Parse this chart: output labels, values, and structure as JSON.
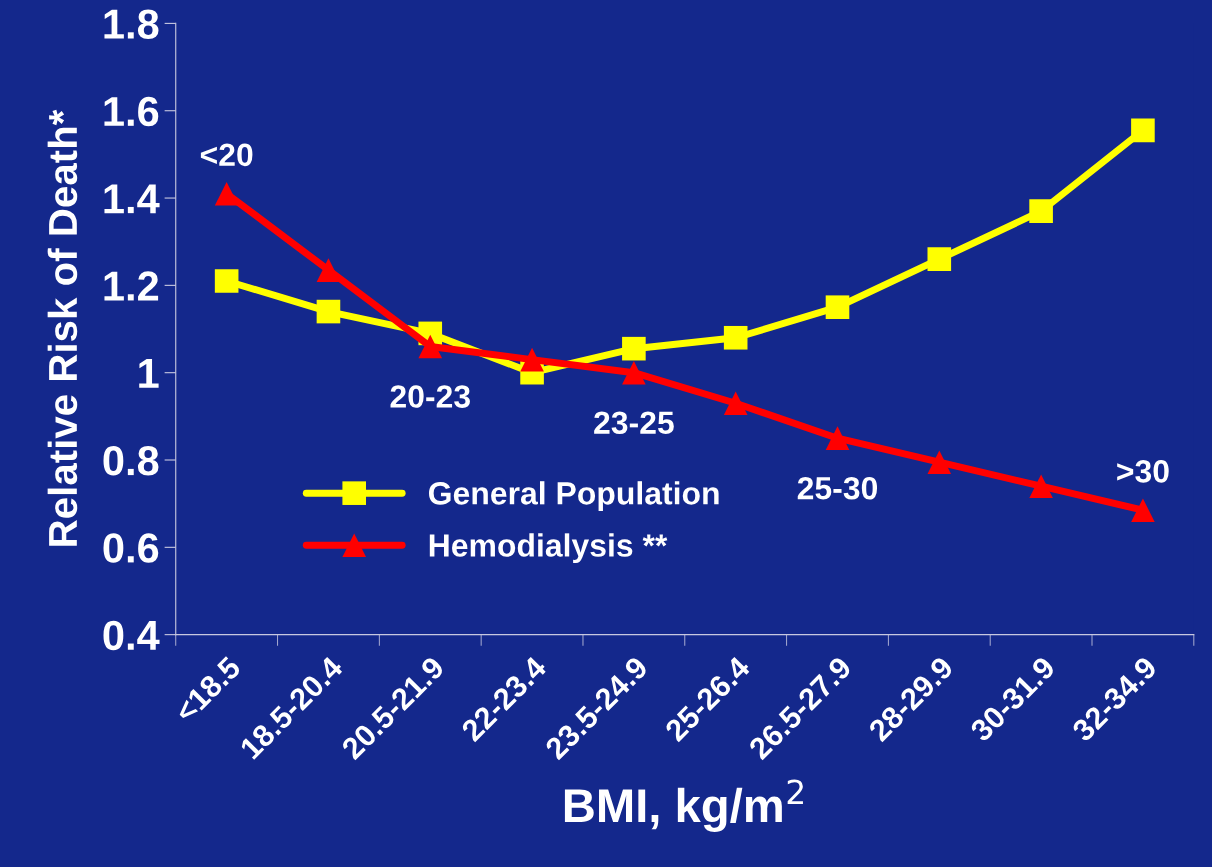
{
  "chart_data": {
    "type": "line",
    "xlabel": "BMI, kg/m$^{2}$",
    "ylabel": "Relative Risk of Death*",
    "categories": [
      "<18.5",
      "18.5-20.4",
      "20.5-21.9",
      "22-23.4",
      "23.5-24.9",
      "25-26.4",
      "26.5-27.9",
      "28-29.9",
      "30-31.9",
      "32-34.9"
    ],
    "series": [
      {
        "name": "General Population",
        "color": "#ffff00",
        "marker": "square",
        "values": [
          1.21,
          1.14,
          1.09,
          1.0,
          1.055,
          1.08,
          1.15,
          1.26,
          1.37,
          1.555
        ]
      },
      {
        "name": "Hemodialysis **",
        "color": "#ff0000",
        "marker": "triangle",
        "values": [
          1.41,
          1.235,
          1.06,
          1.03,
          1.0,
          0.93,
          0.85,
          0.795,
          0.74,
          0.685
        ]
      }
    ],
    "annotations": [
      {
        "text": "<20",
        "x": "<18.5",
        "y": 1.41
      },
      {
        "text": "20-23",
        "x": "20.5-21.9",
        "y": 1.06
      },
      {
        "text": "23-25",
        "x": "23.5-24.9",
        "y": 1.0
      },
      {
        "text": "25-30",
        "x": "26.5-27.9",
        "y": 0.85
      },
      {
        "text": ">30",
        "x": "32-34.9",
        "y": 0.685
      }
    ],
    "ylim": [
      0.4,
      1.8
    ],
    "yticks": [
      0.4,
      0.6,
      0.8,
      1,
      1.2,
      1.4,
      1.6,
      1.8
    ],
    "grid": false,
    "legend": "bottom left",
    "line_style": "solid"
  }
}
